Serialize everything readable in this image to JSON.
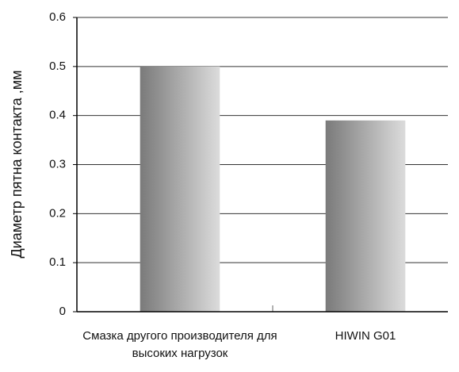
{
  "chart_data": {
    "type": "bar",
    "y_label": "Диаметр пятна контакта ,мм",
    "categories": [
      "Смазка другого производителя для высоких нагрузок",
      "HIWIN G01"
    ],
    "values": [
      0.5,
      0.39
    ],
    "color": [
      "#7a7a7a",
      "#dcdcdc"
    ],
    "ylim": [
      0,
      0.6
    ],
    "yticks": [
      0,
      0.1,
      0.2,
      0.3,
      0.4,
      0.5,
      0.6
    ],
    "grid": true
  }
}
